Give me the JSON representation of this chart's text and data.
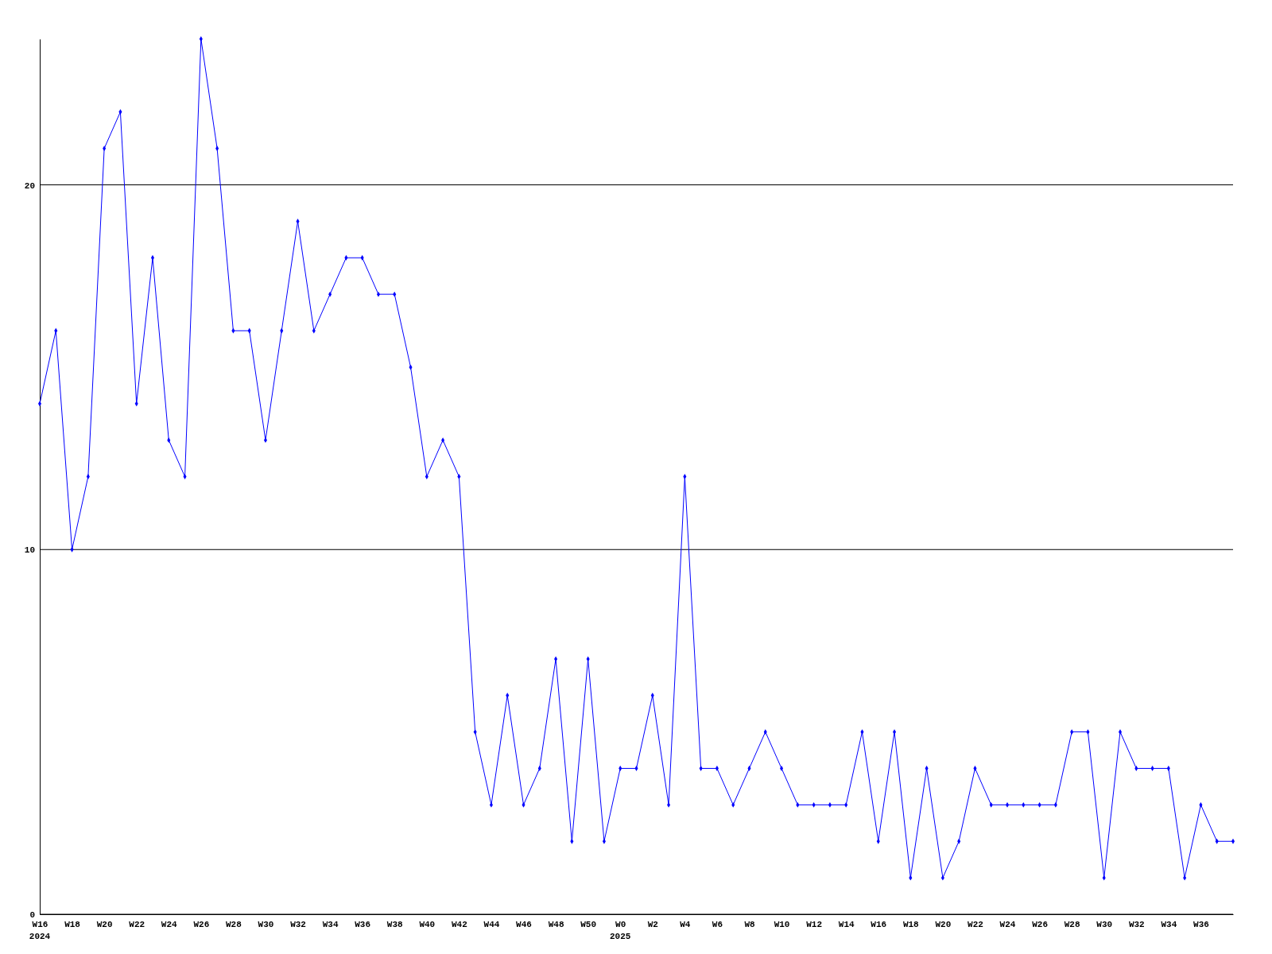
{
  "chart_data": {
    "type": "line",
    "categories": [
      "W16",
      null,
      "W18",
      null,
      "W20",
      null,
      "W22",
      null,
      "W24",
      null,
      "W26",
      null,
      "W28",
      null,
      "W30",
      null,
      "W32",
      null,
      "W34",
      null,
      "W36",
      null,
      "W38",
      null,
      "W40",
      null,
      "W42",
      null,
      "W44",
      null,
      "W46",
      null,
      "W48",
      null,
      "W50",
      null,
      "W0",
      null,
      "W2",
      null,
      "W4",
      null,
      "W6",
      null,
      "W8",
      null,
      "W10",
      null,
      "W12",
      null,
      "W14",
      null,
      "W16",
      null,
      "W18",
      null,
      "W20",
      null,
      "W22",
      null,
      "W24",
      null,
      "W26",
      null,
      "W28",
      null,
      "W30",
      null,
      "W32",
      null,
      "W34",
      null,
      "W36",
      null,
      null
    ],
    "series": [
      {
        "color": "#0000ff",
        "values": [
          14,
          16,
          10,
          12,
          21,
          22,
          14,
          18,
          13,
          12,
          24,
          21,
          16,
          16,
          13,
          16,
          19,
          16,
          17,
          18,
          18,
          17,
          17,
          15,
          12,
          13,
          12,
          5,
          3,
          6,
          3,
          4,
          7,
          2,
          7,
          2,
          4,
          4,
          6,
          3,
          12,
          4,
          4,
          3,
          4,
          5,
          4,
          3,
          3,
          3,
          3,
          5,
          2,
          5,
          1,
          4,
          1,
          2,
          4,
          3,
          3,
          3,
          3,
          3,
          5,
          5,
          1,
          5,
          4,
          4,
          4,
          1,
          3,
          2,
          2
        ]
      }
    ],
    "ylim": [
      0,
      24
    ],
    "yticks": [
      0,
      10,
      20
    ],
    "grid": "y",
    "marker": "diamond",
    "line_style": "solid",
    "annotations": [
      "2024",
      "2025"
    ]
  }
}
